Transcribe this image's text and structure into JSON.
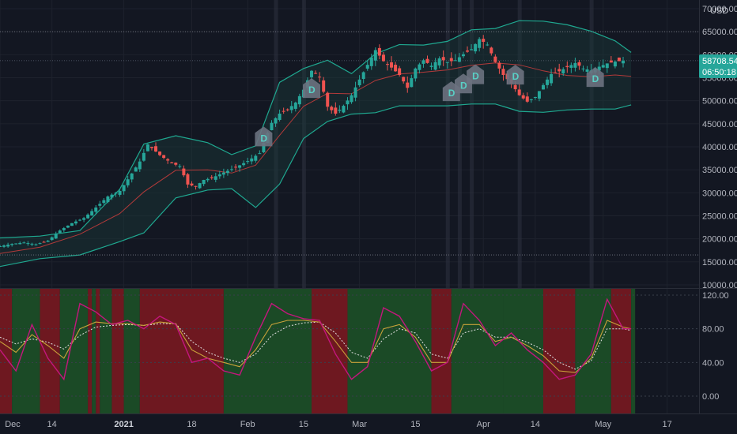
{
  "currency": "USD",
  "price_badge": {
    "price": "58708.54",
    "countdown": "06:50:18",
    "color": "#26a69a"
  },
  "colors": {
    "up": "#26a69a",
    "down": "#ef5350",
    "band": "#1fa890",
    "band_fill": "#1b3a3a",
    "basis": "#b23a3a",
    "osc_line1": "#c4167d",
    "osc_line2": "#c9a23a",
    "osc_line3": "#e0e0e0",
    "bull_zone": "#1b4a26",
    "bear_zone": "#6e1820",
    "marker": "#6b7280",
    "vline": "#2e3240"
  },
  "chart_data": [
    {
      "type": "candlestick",
      "title": "",
      "xlabel": "",
      "ylabel": "",
      "ylim": [
        10000,
        70000
      ],
      "y_ticks": [
        "70000.00",
        "65000.00",
        "60000.00",
        "55000.00",
        "50000.00",
        "45000.00",
        "40000.00",
        "35000.00",
        "30000.00",
        "25000.00",
        "20000.00",
        "15000.00",
        "10000.00"
      ],
      "x_ticks": [
        "Dec",
        "14",
        "2021",
        "18",
        "Feb",
        "15",
        "Mar",
        "15",
        "Apr",
        "14",
        "May",
        "17"
      ],
      "x_tick_days": [
        0,
        13,
        31,
        48,
        62,
        76,
        90,
        104,
        121,
        134,
        151,
        167
      ],
      "x_range_days": [
        0,
        175
      ],
      "grid": true,
      "horizontal_levels": [
        65000,
        16500,
        58708.54
      ],
      "series": [
        {
          "kind": "ohlc_close_path",
          "days": [
            0,
            3,
            6,
            9,
            12,
            15,
            18,
            21,
            24,
            27,
            30,
            33,
            35,
            37,
            40,
            43,
            45,
            47,
            49,
            51,
            53,
            56,
            59,
            62,
            65,
            68,
            70,
            72,
            74,
            76,
            78,
            80,
            82,
            84,
            86,
            88,
            90,
            92,
            94,
            96,
            98,
            100,
            102,
            104,
            106,
            108,
            110,
            112,
            114,
            116,
            118,
            120,
            122,
            124,
            126,
            128,
            130,
            132,
            134,
            136,
            138,
            140,
            142,
            144,
            146,
            148,
            150,
            152,
            154,
            156,
            158
          ],
          "closes": [
            18400,
            18900,
            19200,
            18800,
            19600,
            21800,
            23400,
            24500,
            26800,
            29200,
            30400,
            34200,
            36800,
            40500,
            38200,
            36400,
            35800,
            31800,
            31400,
            32800,
            33200,
            34400,
            35500,
            36900,
            38600,
            45200,
            47200,
            48100,
            49600,
            52400,
            56500,
            55200,
            48700,
            47200,
            48900,
            51200,
            54600,
            57800,
            61000,
            58600,
            57200,
            55600,
            52800,
            57000,
            58800,
            57600,
            59200,
            58400,
            58800,
            60100,
            61200,
            63400,
            62200,
            58400,
            55600,
            53800,
            51200,
            49800,
            50800,
            53400,
            55800,
            56400,
            57300,
            58200,
            57000,
            56600,
            57400,
            58100,
            58500,
            58708.54
          ],
          "name": ""
        },
        {
          "kind": "band_upper",
          "days": [
            0,
            10,
            20,
            30,
            36,
            44,
            52,
            58,
            64,
            70,
            76,
            82,
            88,
            94,
            100,
            106,
            112,
            118,
            124,
            130,
            136,
            142,
            148,
            154,
            158
          ],
          "values": [
            20200,
            20600,
            21800,
            30800,
            40600,
            42400,
            40900,
            38300,
            40200,
            54000,
            57000,
            58800,
            55900,
            60200,
            62200,
            62100,
            62900,
            65400,
            65700,
            67400,
            67300,
            66500,
            65100,
            63000,
            60500
          ],
          "name": ""
        },
        {
          "kind": "band_lower",
          "days": [
            0,
            10,
            20,
            30,
            36,
            44,
            52,
            58,
            64,
            70,
            76,
            82,
            88,
            94,
            100,
            106,
            112,
            118,
            124,
            130,
            136,
            142,
            148,
            154,
            158
          ],
          "values": [
            14000,
            15700,
            16500,
            19400,
            21300,
            28900,
            30600,
            30900,
            26800,
            31900,
            41800,
            45500,
            47100,
            47400,
            48900,
            48900,
            48900,
            49300,
            49300,
            47700,
            47500,
            48000,
            48200,
            48200,
            49100
          ],
          "name": ""
        },
        {
          "kind": "basis",
          "days": [
            0,
            10,
            20,
            30,
            36,
            44,
            52,
            58,
            64,
            70,
            76,
            82,
            88,
            94,
            100,
            106,
            112,
            118,
            124,
            130,
            136,
            142,
            148,
            154,
            158
          ],
          "values": [
            16800,
            18200,
            21000,
            25500,
            30200,
            34900,
            35000,
            34300,
            36000,
            42500,
            48800,
            51600,
            51500,
            54400,
            55800,
            56200,
            56700,
            57700,
            58200,
            57800,
            56500,
            55500,
            55200,
            55600,
            55300
          ],
          "name": ""
        }
      ],
      "markers": [
        {
          "day": 66,
          "price": 42000,
          "label": "D"
        },
        {
          "day": 78,
          "price": 52500,
          "label": "D"
        },
        {
          "day": 113,
          "price": 51800,
          "label": "D"
        },
        {
          "day": 116,
          "price": 53500,
          "label": "D"
        },
        {
          "day": 119,
          "price": 55500,
          "label": "D"
        },
        {
          "day": 129,
          "price": 55400,
          "label": "D"
        },
        {
          "day": 149,
          "price": 54900,
          "label": "D"
        }
      ],
      "vertical_markers_days": [
        69,
        76,
        112,
        115,
        118,
        130,
        148
      ]
    },
    {
      "type": "area",
      "title": "",
      "ylim": [
        -20,
        120
      ],
      "y_ticks": [
        "120.00",
        "80.00",
        "40.00",
        "0.00"
      ],
      "grid": true,
      "zones": [
        {
          "from": 0,
          "to": 3,
          "state": "bear"
        },
        {
          "from": 3,
          "to": 10,
          "state": "bull"
        },
        {
          "from": 10,
          "to": 15,
          "state": "bear"
        },
        {
          "from": 15,
          "to": 22,
          "state": "bull"
        },
        {
          "from": 22,
          "to": 23,
          "state": "bear"
        },
        {
          "from": 23,
          "to": 24,
          "state": "bull"
        },
        {
          "from": 24,
          "to": 25,
          "state": "bear"
        },
        {
          "from": 25,
          "to": 28,
          "state": "bull"
        },
        {
          "from": 28,
          "to": 31,
          "state": "bear"
        },
        {
          "from": 31,
          "to": 35,
          "state": "bull"
        },
        {
          "from": 35,
          "to": 39,
          "state": "bear"
        },
        {
          "from": 39,
          "to": 56,
          "state": "bear"
        },
        {
          "from": 56,
          "to": 78,
          "state": "bull"
        },
        {
          "from": 78,
          "to": 87,
          "state": "bear"
        },
        {
          "from": 87,
          "to": 108,
          "state": "bull"
        },
        {
          "from": 108,
          "to": 113,
          "state": "bear"
        },
        {
          "from": 113,
          "to": 126,
          "state": "bull"
        },
        {
          "from": 126,
          "to": 136,
          "state": "bull"
        },
        {
          "from": 136,
          "to": 144,
          "state": "bear"
        },
        {
          "from": 144,
          "to": 153,
          "state": "bull"
        },
        {
          "from": 153,
          "to": 158,
          "state": "bear"
        },
        {
          "from": 158,
          "to": 159,
          "state": "bull"
        }
      ],
      "series": [
        {
          "kind": "fast",
          "days": [
            0,
            4,
            8,
            12,
            16,
            20,
            24,
            28,
            32,
            36,
            40,
            44,
            48,
            52,
            56,
            60,
            64,
            68,
            72,
            76,
            80,
            84,
            88,
            92,
            96,
            100,
            104,
            108,
            112,
            116,
            120,
            124,
            128,
            132,
            136,
            140,
            144,
            148,
            152,
            156,
            158
          ],
          "values": [
            55,
            30,
            85,
            45,
            20,
            110,
            100,
            85,
            90,
            80,
            95,
            85,
            40,
            45,
            30,
            25,
            70,
            110,
            98,
            92,
            90,
            50,
            20,
            35,
            105,
            95,
            65,
            30,
            40,
            110,
            90,
            60,
            75,
            55,
            40,
            20,
            25,
            50,
            115,
            80,
            80
          ]
        },
        {
          "kind": "mid",
          "days": [
            0,
            4,
            8,
            12,
            16,
            20,
            24,
            28,
            32,
            36,
            40,
            44,
            48,
            52,
            56,
            60,
            64,
            68,
            72,
            76,
            80,
            84,
            88,
            92,
            96,
            100,
            104,
            108,
            112,
            116,
            120,
            124,
            128,
            132,
            136,
            140,
            144,
            148,
            152,
            156,
            158
          ],
          "values": [
            65,
            52,
            73,
            60,
            45,
            80,
            88,
            86,
            86,
            84,
            88,
            86,
            55,
            45,
            40,
            35,
            55,
            85,
            90,
            90,
            88,
            65,
            40,
            40,
            80,
            85,
            70,
            40,
            40,
            85,
            85,
            65,
            70,
            60,
            48,
            30,
            28,
            45,
            90,
            82,
            80
          ]
        },
        {
          "kind": "slow",
          "days": [
            0,
            4,
            8,
            12,
            16,
            20,
            24,
            28,
            32,
            36,
            40,
            44,
            48,
            52,
            56,
            60,
            64,
            68,
            72,
            76,
            80,
            84,
            88,
            92,
            96,
            100,
            104,
            108,
            112,
            116,
            120,
            124,
            128,
            132,
            136,
            140,
            144,
            148,
            152,
            156,
            158
          ],
          "values": [
            70,
            62,
            68,
            64,
            56,
            72,
            82,
            84,
            85,
            84,
            86,
            86,
            65,
            52,
            45,
            40,
            50,
            72,
            83,
            87,
            88,
            75,
            52,
            45,
            68,
            80,
            75,
            50,
            45,
            75,
            80,
            70,
            70,
            64,
            55,
            40,
            32,
            42,
            80,
            80,
            78
          ]
        }
      ]
    }
  ]
}
